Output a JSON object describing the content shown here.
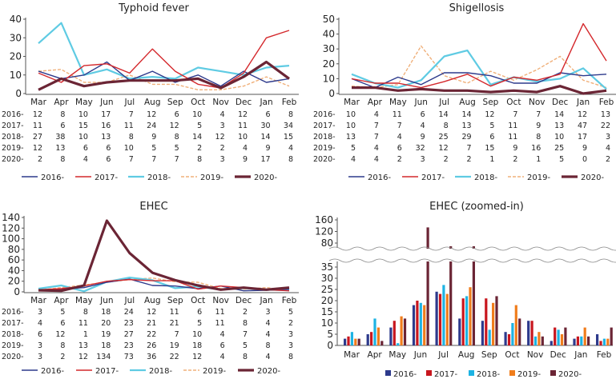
{
  "series_names": [
    "2016-",
    "2017-",
    "2018-",
    "2019-",
    "2020-"
  ],
  "colors": {
    "line": [
      "#2d3a8c",
      "#d4282c",
      "#5fcbe3",
      "#f0b07a",
      "#6b2535"
    ],
    "bar": [
      "#2d3a8c",
      "#c8161e",
      "#1db3e3",
      "#f07d1c",
      "#6b2535"
    ]
  },
  "chart_data": [
    {
      "type": "line",
      "title": "Typhoid fever",
      "categories": [
        "Mar",
        "Apr",
        "May",
        "Jun",
        "Jul",
        "Aug",
        "Sep",
        "Oct",
        "Nov",
        "Dec",
        "Jan",
        "Feb"
      ],
      "ylim": [
        0,
        40
      ],
      "yticks": [
        "0",
        "10",
        "20",
        "30",
        "40"
      ],
      "series": [
        {
          "name": "2016-",
          "values": [
            12,
            8,
            10,
            17,
            7,
            12,
            6,
            10,
            4,
            12,
            6,
            8
          ]
        },
        {
          "name": "2017-",
          "values": [
            11,
            6,
            15,
            16,
            11,
            24,
            12,
            5,
            3,
            11,
            30,
            34
          ]
        },
        {
          "name": "2018-",
          "values": [
            27,
            38,
            10,
            13,
            8,
            9,
            8,
            14,
            12,
            10,
            14,
            15
          ]
        },
        {
          "name": "2019-",
          "values": [
            12,
            13,
            6,
            6,
            10,
            5,
            5,
            2,
            2,
            4,
            9,
            4
          ]
        },
        {
          "name": "2020-",
          "values": [
            2,
            8,
            4,
            6,
            7,
            7,
            7,
            8,
            3,
            9,
            17,
            8
          ]
        }
      ],
      "legend": "bottom"
    },
    {
      "type": "line",
      "title": "Shigellosis",
      "categories": [
        "Mar",
        "Apr",
        "May",
        "Jun",
        "Jul",
        "Aug",
        "Sep",
        "Oct",
        "Nov",
        "Dec",
        "Jan",
        "Feb"
      ],
      "ylim": [
        0,
        50
      ],
      "yticks": [
        "0",
        "10",
        "20",
        "30",
        "40",
        "50"
      ],
      "series": [
        {
          "name": "2016-",
          "values": [
            10,
            4,
            11,
            6,
            14,
            14,
            12,
            7,
            7,
            14,
            12,
            13
          ]
        },
        {
          "name": "2017-",
          "values": [
            10,
            7,
            7,
            4,
            8,
            13,
            5,
            11,
            9,
            13,
            47,
            22
          ]
        },
        {
          "name": "2018-",
          "values": [
            13,
            7,
            4,
            9,
            25,
            29,
            6,
            11,
            8,
            10,
            17,
            3
          ]
        },
        {
          "name": "2019-",
          "values": [
            5,
            4,
            6,
            32,
            12,
            7,
            15,
            9,
            16,
            25,
            9,
            4
          ]
        },
        {
          "name": "2020-",
          "values": [
            4,
            4,
            2,
            3,
            2,
            2,
            1,
            2,
            1,
            5,
            0,
            2
          ]
        }
      ],
      "legend": "bottom"
    },
    {
      "type": "line",
      "title": "EHEC",
      "categories": [
        "Mar",
        "Apr",
        "May",
        "Jun",
        "Jul",
        "Aug",
        "Sep",
        "Oct",
        "Nov",
        "Dec",
        "Jan",
        "Feb"
      ],
      "ylim": [
        0,
        140
      ],
      "yticks": [
        "0",
        "20",
        "40",
        "60",
        "80",
        "100",
        "120",
        "140"
      ],
      "series": [
        {
          "name": "2016-",
          "values": [
            3,
            5,
            8,
            18,
            24,
            12,
            11,
            6,
            11,
            2,
            3,
            5
          ]
        },
        {
          "name": "2017-",
          "values": [
            4,
            6,
            11,
            20,
            23,
            21,
            21,
            5,
            11,
            8,
            4,
            2
          ]
        },
        {
          "name": "2018-",
          "values": [
            6,
            12,
            1,
            19,
            27,
            22,
            7,
            10,
            4,
            7,
            4,
            3
          ]
        },
        {
          "name": "2019-",
          "values": [
            3,
            8,
            13,
            18,
            23,
            26,
            19,
            18,
            6,
            5,
            8,
            3
          ]
        },
        {
          "name": "2020-",
          "values": [
            3,
            2,
            12,
            134,
            73,
            36,
            22,
            12,
            4,
            8,
            4,
            8
          ]
        }
      ],
      "legend": "bottom"
    },
    {
      "type": "bar",
      "title": "EHEC (zoomed-in)",
      "categories": [
        "Mar",
        "Apr",
        "May",
        "Jun",
        "Jul",
        "Aug",
        "Sep",
        "Oct",
        "Nov",
        "Dec",
        "Jan",
        "Feb"
      ],
      "ylim_lower": [
        0,
        35
      ],
      "ylim_upper": [
        80,
        160
      ],
      "yticks_lower": [
        "0",
        "5",
        "10",
        "15",
        "20",
        "25",
        "30",
        "35"
      ],
      "yticks_upper": [
        "80",
        "120",
        "160"
      ],
      "axis_break": true,
      "series": [
        {
          "name": "2016-",
          "values": [
            3,
            5,
            8,
            18,
            24,
            12,
            11,
            6,
            11,
            2,
            3,
            5
          ]
        },
        {
          "name": "2017-",
          "values": [
            4,
            6,
            11,
            20,
            23,
            21,
            21,
            5,
            11,
            8,
            4,
            2
          ]
        },
        {
          "name": "2018-",
          "values": [
            6,
            12,
            1,
            19,
            27,
            22,
            7,
            10,
            4,
            7,
            4,
            3
          ]
        },
        {
          "name": "2019-",
          "values": [
            3,
            8,
            13,
            18,
            23,
            26,
            19,
            18,
            6,
            5,
            8,
            3
          ]
        },
        {
          "name": "2020-",
          "values": [
            3,
            2,
            12,
            134,
            73,
            36,
            22,
            12,
            4,
            8,
            4,
            8
          ]
        }
      ],
      "legend": "bottom"
    }
  ]
}
